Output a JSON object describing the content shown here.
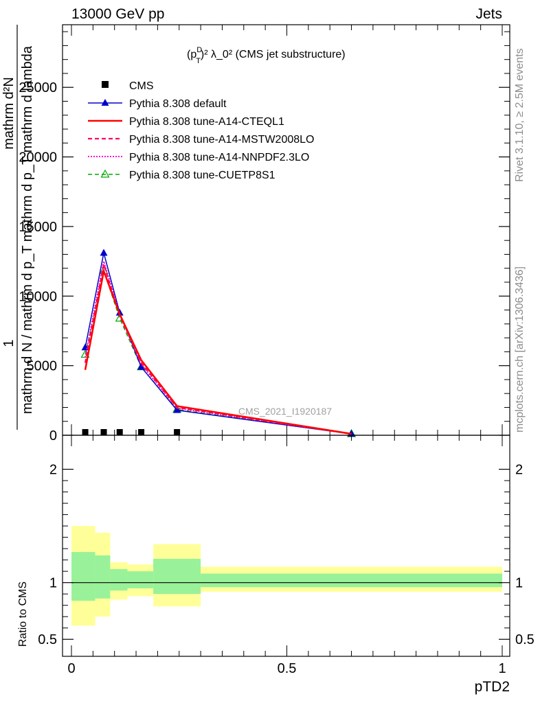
{
  "header": {
    "left_label": "13000 GeV pp",
    "right_label": "Jets"
  },
  "side_labels": {
    "rivet": "Rivet 3.1.10, ≥ 2.5M events",
    "mcplots": "mcplots.cern.ch [arXiv:1306.3436]"
  },
  "main_panel": {
    "title_parts": {
      "base": "(p",
      "sup": "D",
      "sub": "T",
      "rest": ")² λ_0² (CMS jet substructure)"
    },
    "ylabel_lines": [
      "1",
      "mathrm d N / mathrm d p_T mathrm d p_T mathrm d lambda",
      "mathrm d²N"
    ],
    "watermark": "CMS_2021_I1920187"
  },
  "ratio_panel": {
    "ylabel": "Ratio to CMS",
    "xlabel": "pTD2"
  },
  "colors": {
    "cms": "#000000",
    "default": "#0000cc",
    "cteql1": "#ff0000",
    "mstw": "#ff0066",
    "nnpdf": "#ff00cc",
    "cuetp": "#00aa00",
    "band_inner": "#99f299",
    "band_outer": "#ffff99"
  },
  "chart_data": {
    "type": "line",
    "xlim": [
      0,
      1
    ],
    "ylim": [
      0,
      29500
    ],
    "ratio_ylim": [
      0.35,
      2.3
    ],
    "x_ticks": [
      0,
      0.5,
      1
    ],
    "x_tick_labels": [
      "0",
      "0.5",
      "1"
    ],
    "y_ticks": [
      0,
      5000,
      10000,
      15000,
      20000,
      25000
    ],
    "y_tick_labels": [
      "0",
      "5000",
      "10000",
      "15000",
      "20000",
      "25000"
    ],
    "ratio_ticks": [
      0.5,
      1,
      2
    ],
    "ratio_tick_labels": [
      "0.5",
      "1",
      "2"
    ],
    "x": [
      0.032,
      0.075,
      0.112,
      0.162,
      0.245,
      0.65
    ],
    "series": [
      {
        "name": "CMS",
        "key": "cms",
        "marker": "square",
        "values": [
          0,
          0,
          0,
          0,
          0,
          null
        ]
      },
      {
        "name": "Pythia 8.308 default",
        "key": "default",
        "marker": "triangle",
        "values": [
          6300,
          13100,
          8800,
          4900,
          1800,
          100
        ]
      },
      {
        "name": "Pythia 8.308 tune-A14-CTEQL1",
        "key": "cteql1",
        "marker": "none",
        "values": [
          4700,
          11800,
          8700,
          5400,
          2100,
          100
        ]
      },
      {
        "name": "Pythia 8.308 tune-A14-MSTW2008LO",
        "key": "mstw",
        "marker": "none",
        "values": [
          5200,
          12300,
          8600,
          5200,
          2000,
          100
        ]
      },
      {
        "name": "Pythia 8.308 tune-A14-NNPDF2.3LO",
        "key": "nnpdf",
        "marker": "none",
        "values": [
          5600,
          12500,
          8700,
          5100,
          1950,
          100
        ]
      },
      {
        "name": "Pythia 8.308 tune-CUETP8S1",
        "key": "cuetp",
        "marker": "triangle-open",
        "values": [
          5800,
          11800,
          8400,
          4900,
          1850,
          100
        ]
      }
    ],
    "ratio_bands": [
      {
        "x0": 0.0,
        "x1": 0.055,
        "outer": [
          0.62,
          1.5
        ],
        "inner": [
          0.84,
          1.27
        ]
      },
      {
        "x0": 0.055,
        "x1": 0.09,
        "outer": [
          0.7,
          1.44
        ],
        "inner": [
          0.86,
          1.24
        ]
      },
      {
        "x0": 0.09,
        "x1": 0.13,
        "outer": [
          0.85,
          1.18
        ],
        "inner": [
          0.93,
          1.12
        ]
      },
      {
        "x0": 0.13,
        "x1": 0.19,
        "outer": [
          0.88,
          1.16
        ],
        "inner": [
          0.95,
          1.1
        ]
      },
      {
        "x0": 0.19,
        "x1": 0.3,
        "outer": [
          0.79,
          1.34
        ],
        "inner": [
          0.9,
          1.21
        ]
      },
      {
        "x0": 0.3,
        "x1": 1.0,
        "outer": [
          0.92,
          1.14
        ],
        "inner": [
          0.96,
          1.08
        ]
      }
    ]
  }
}
